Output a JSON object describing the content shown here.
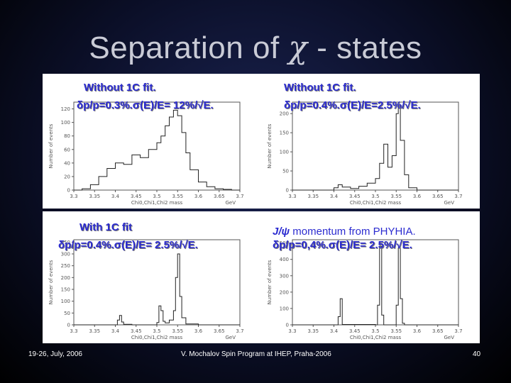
{
  "slide": {
    "title_prefix": "Separation of ",
    "title_symbol": "χ",
    "title_suffix": " - states",
    "footer_left": "19-26, July, 2006",
    "footer_center": "V. Mochalov Spin Program at IHEP, Praha-2006",
    "footer_right": "40"
  },
  "panels": [
    {
      "caption_line1": "Without 1C fit.",
      "caption_line2": "δp/p=0.3%.σ(E)/E= 12%/√E."
    },
    {
      "caption_line1": "Without 1C fit.",
      "caption_line2": "δp/p=0.4%.σ(E)/E=2.5%/√E."
    },
    {
      "caption_line1": "With 1C fit",
      "caption_line2": "δp/p=0.4%.σ(E)/E= 2.5%/√E."
    },
    {
      "caption_line1_sym": "J/ψ",
      "caption_line1": " momentum from PHYHIA.",
      "caption_line2": "δp/p=0,4%.σ(E)/E= 2.5%/√E."
    }
  ],
  "chart_data": [
    {
      "type": "line",
      "xlabel": "Chi0,Chi1,Chi2 mass",
      "xunit": "GeV",
      "ylabel": "Number of events",
      "xlim": [
        3.3,
        3.7
      ],
      "ylim": [
        0,
        130
      ],
      "xticks": [
        "3.3",
        "3.35",
        "3.4",
        "3.45",
        "3.5",
        "3.55",
        "3.6",
        "3.65",
        "3.7"
      ],
      "yticks": [
        0,
        20,
        40,
        60,
        80,
        100,
        120
      ],
      "x": [
        3.3,
        3.32,
        3.34,
        3.36,
        3.38,
        3.4,
        3.42,
        3.44,
        3.46,
        3.48,
        3.5,
        3.51,
        3.52,
        3.53,
        3.54,
        3.55,
        3.56,
        3.57,
        3.58,
        3.6,
        3.62,
        3.64,
        3.66,
        3.68,
        3.7
      ],
      "values": [
        0,
        2,
        8,
        20,
        32,
        40,
        38,
        52,
        48,
        60,
        70,
        80,
        95,
        108,
        118,
        110,
        85,
        55,
        30,
        12,
        5,
        2,
        1,
        0,
        0
      ]
    },
    {
      "type": "line",
      "xlabel": "Chi0,Chi1,Chi2 mass",
      "xunit": "GeV",
      "ylabel": "Number of events",
      "xlim": [
        3.3,
        3.7
      ],
      "ylim": [
        0,
        230
      ],
      "xticks": [
        "3.3",
        "3.35",
        "3.4",
        "3.45",
        "3.5",
        "3.55",
        "3.6",
        "3.65",
        "3.7"
      ],
      "yticks": [
        0,
        50,
        100,
        150,
        200
      ],
      "x": [
        3.3,
        3.38,
        3.4,
        3.41,
        3.42,
        3.44,
        3.46,
        3.48,
        3.5,
        3.51,
        3.52,
        3.53,
        3.54,
        3.55,
        3.555,
        3.56,
        3.57,
        3.58,
        3.6,
        3.7
      ],
      "values": [
        0,
        0,
        6,
        14,
        8,
        4,
        10,
        18,
        30,
        70,
        120,
        60,
        90,
        200,
        220,
        130,
        40,
        6,
        0,
        0
      ]
    },
    {
      "type": "line",
      "xlabel": "Chi0,Chi1,Chi2 mass",
      "xunit": "GeV",
      "ylabel": "Number of events",
      "xlim": [
        3.3,
        3.7
      ],
      "ylim": [
        0,
        360
      ],
      "xticks": [
        "3.3",
        "3.35",
        "3.4",
        "3.45",
        "3.5",
        "3.55",
        "3.6",
        "3.65",
        "3.7"
      ],
      "yticks": [
        0,
        50,
        100,
        150,
        200,
        250,
        300,
        350
      ],
      "x": [
        3.3,
        3.4,
        3.405,
        3.41,
        3.415,
        3.42,
        3.44,
        3.48,
        3.5,
        3.505,
        3.51,
        3.515,
        3.52,
        3.53,
        3.54,
        3.545,
        3.55,
        3.555,
        3.56,
        3.57,
        3.6,
        3.7
      ],
      "values": [
        0,
        0,
        20,
        40,
        12,
        2,
        0,
        0,
        10,
        80,
        60,
        15,
        8,
        20,
        60,
        200,
        300,
        120,
        30,
        4,
        0,
        0
      ]
    },
    {
      "type": "line",
      "xlabel": "Chi0,Chi1,Chi2 mass",
      "xunit": "GeV",
      "ylabel": "Number of events",
      "xlim": [
        3.3,
        3.7
      ],
      "ylim": [
        0,
        520
      ],
      "xticks": [
        "3.3",
        "3.35",
        "3.4",
        "3.45",
        "3.5",
        "3.55",
        "3.6",
        "3.65",
        "3.7"
      ],
      "yticks": [
        0,
        100,
        200,
        300,
        400,
        500
      ],
      "x": [
        3.3,
        3.405,
        3.41,
        3.415,
        3.42,
        3.5,
        3.505,
        3.51,
        3.515,
        3.52,
        3.54,
        3.55,
        3.555,
        3.56,
        3.565,
        3.57,
        3.7
      ],
      "values": [
        0,
        0,
        50,
        160,
        2,
        0,
        120,
        480,
        60,
        0,
        0,
        120,
        470,
        160,
        10,
        0,
        0
      ]
    }
  ]
}
